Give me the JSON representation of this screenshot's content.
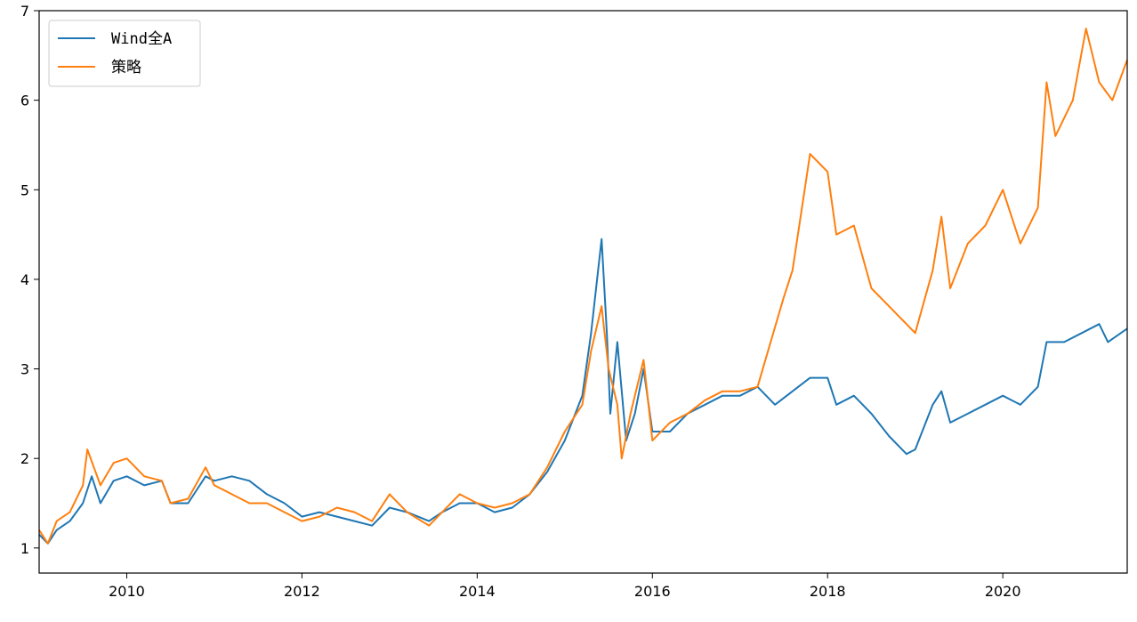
{
  "chart_data": {
    "type": "line",
    "title": "",
    "xlabel": "",
    "ylabel": "",
    "x_range": [
      2009.0,
      2021.42
    ],
    "y_range": [
      0.72,
      7.0
    ],
    "x_ticks": [
      2010,
      2012,
      2014,
      2016,
      2018,
      2020
    ],
    "x_tick_labels": [
      "2010",
      "2012",
      "2014",
      "2016",
      "2018",
      "2020"
    ],
    "y_ticks": [
      1,
      2,
      3,
      4,
      5,
      6,
      7
    ],
    "y_tick_labels": [
      "1",
      "2",
      "3",
      "4",
      "5",
      "6",
      "7"
    ],
    "grid": false,
    "legend": "top-left",
    "series": [
      {
        "name": "Wind全A",
        "color": "#1f77b4",
        "points": [
          [
            2009.0,
            1.15
          ],
          [
            2009.1,
            1.05
          ],
          [
            2009.2,
            1.2
          ],
          [
            2009.35,
            1.3
          ],
          [
            2009.5,
            1.5
          ],
          [
            2009.6,
            1.8
          ],
          [
            2009.7,
            1.5
          ],
          [
            2009.85,
            1.75
          ],
          [
            2010.0,
            1.8
          ],
          [
            2010.2,
            1.7
          ],
          [
            2010.4,
            1.75
          ],
          [
            2010.5,
            1.5
          ],
          [
            2010.7,
            1.5
          ],
          [
            2010.9,
            1.8
          ],
          [
            2011.0,
            1.75
          ],
          [
            2011.2,
            1.8
          ],
          [
            2011.4,
            1.75
          ],
          [
            2011.6,
            1.6
          ],
          [
            2011.8,
            1.5
          ],
          [
            2012.0,
            1.35
          ],
          [
            2012.2,
            1.4
          ],
          [
            2012.4,
            1.35
          ],
          [
            2012.6,
            1.3
          ],
          [
            2012.8,
            1.25
          ],
          [
            2013.0,
            1.45
          ],
          [
            2013.2,
            1.4
          ],
          [
            2013.45,
            1.3
          ],
          [
            2013.6,
            1.4
          ],
          [
            2013.8,
            1.5
          ],
          [
            2014.0,
            1.5
          ],
          [
            2014.2,
            1.4
          ],
          [
            2014.4,
            1.45
          ],
          [
            2014.6,
            1.6
          ],
          [
            2014.8,
            1.85
          ],
          [
            2015.0,
            2.2
          ],
          [
            2015.2,
            2.7
          ],
          [
            2015.3,
            3.4
          ],
          [
            2015.42,
            4.45
          ],
          [
            2015.48,
            3.4
          ],
          [
            2015.52,
            2.5
          ],
          [
            2015.6,
            3.3
          ],
          [
            2015.7,
            2.2
          ],
          [
            2015.8,
            2.5
          ],
          [
            2015.9,
            3.0
          ],
          [
            2016.0,
            2.3
          ],
          [
            2016.2,
            2.3
          ],
          [
            2016.4,
            2.5
          ],
          [
            2016.6,
            2.6
          ],
          [
            2016.8,
            2.7
          ],
          [
            2017.0,
            2.7
          ],
          [
            2017.2,
            2.8
          ],
          [
            2017.4,
            2.6
          ],
          [
            2017.6,
            2.75
          ],
          [
            2017.8,
            2.9
          ],
          [
            2018.0,
            2.9
          ],
          [
            2018.1,
            2.6
          ],
          [
            2018.3,
            2.7
          ],
          [
            2018.5,
            2.5
          ],
          [
            2018.7,
            2.25
          ],
          [
            2018.9,
            2.05
          ],
          [
            2019.0,
            2.1
          ],
          [
            2019.2,
            2.6
          ],
          [
            2019.3,
            2.75
          ],
          [
            2019.4,
            2.4
          ],
          [
            2019.6,
            2.5
          ],
          [
            2019.8,
            2.6
          ],
          [
            2020.0,
            2.7
          ],
          [
            2020.2,
            2.6
          ],
          [
            2020.4,
            2.8
          ],
          [
            2020.5,
            3.3
          ],
          [
            2020.7,
            3.3
          ],
          [
            2020.9,
            3.4
          ],
          [
            2021.1,
            3.5
          ],
          [
            2021.2,
            3.3
          ],
          [
            2021.42,
            3.45
          ]
        ]
      },
      {
        "name": "策略",
        "color": "#ff7f0e",
        "points": [
          [
            2009.0,
            1.2
          ],
          [
            2009.1,
            1.05
          ],
          [
            2009.2,
            1.3
          ],
          [
            2009.35,
            1.4
          ],
          [
            2009.5,
            1.7
          ],
          [
            2009.55,
            2.1
          ],
          [
            2009.7,
            1.7
          ],
          [
            2009.85,
            1.95
          ],
          [
            2010.0,
            2.0
          ],
          [
            2010.2,
            1.8
          ],
          [
            2010.4,
            1.75
          ],
          [
            2010.5,
            1.5
          ],
          [
            2010.7,
            1.55
          ],
          [
            2010.9,
            1.9
          ],
          [
            2011.0,
            1.7
          ],
          [
            2011.2,
            1.6
          ],
          [
            2011.4,
            1.5
          ],
          [
            2011.6,
            1.5
          ],
          [
            2011.8,
            1.4
          ],
          [
            2012.0,
            1.3
          ],
          [
            2012.2,
            1.35
          ],
          [
            2012.4,
            1.45
          ],
          [
            2012.6,
            1.4
          ],
          [
            2012.8,
            1.3
          ],
          [
            2013.0,
            1.6
          ],
          [
            2013.2,
            1.4
          ],
          [
            2013.45,
            1.25
          ],
          [
            2013.6,
            1.4
          ],
          [
            2013.8,
            1.6
          ],
          [
            2014.0,
            1.5
          ],
          [
            2014.2,
            1.45
          ],
          [
            2014.4,
            1.5
          ],
          [
            2014.6,
            1.6
          ],
          [
            2014.8,
            1.9
          ],
          [
            2015.0,
            2.3
          ],
          [
            2015.2,
            2.6
          ],
          [
            2015.3,
            3.2
          ],
          [
            2015.42,
            3.7
          ],
          [
            2015.5,
            3.0
          ],
          [
            2015.6,
            2.6
          ],
          [
            2015.65,
            2.0
          ],
          [
            2015.75,
            2.5
          ],
          [
            2015.9,
            3.1
          ],
          [
            2016.0,
            2.2
          ],
          [
            2016.2,
            2.4
          ],
          [
            2016.4,
            2.5
          ],
          [
            2016.6,
            2.65
          ],
          [
            2016.8,
            2.75
          ],
          [
            2017.0,
            2.75
          ],
          [
            2017.2,
            2.8
          ],
          [
            2017.35,
            3.3
          ],
          [
            2017.5,
            3.8
          ],
          [
            2017.6,
            4.1
          ],
          [
            2017.8,
            5.4
          ],
          [
            2018.0,
            5.2
          ],
          [
            2018.1,
            4.5
          ],
          [
            2018.3,
            4.6
          ],
          [
            2018.5,
            3.9
          ],
          [
            2018.7,
            3.7
          ],
          [
            2018.9,
            3.5
          ],
          [
            2019.0,
            3.4
          ],
          [
            2019.2,
            4.1
          ],
          [
            2019.3,
            4.7
          ],
          [
            2019.4,
            3.9
          ],
          [
            2019.6,
            4.4
          ],
          [
            2019.8,
            4.6
          ],
          [
            2020.0,
            5.0
          ],
          [
            2020.2,
            4.4
          ],
          [
            2020.4,
            4.8
          ],
          [
            2020.5,
            6.2
          ],
          [
            2020.6,
            5.6
          ],
          [
            2020.8,
            6.0
          ],
          [
            2020.95,
            6.8
          ],
          [
            2021.1,
            6.2
          ],
          [
            2021.25,
            6.0
          ],
          [
            2021.42,
            6.45
          ]
        ]
      }
    ]
  }
}
